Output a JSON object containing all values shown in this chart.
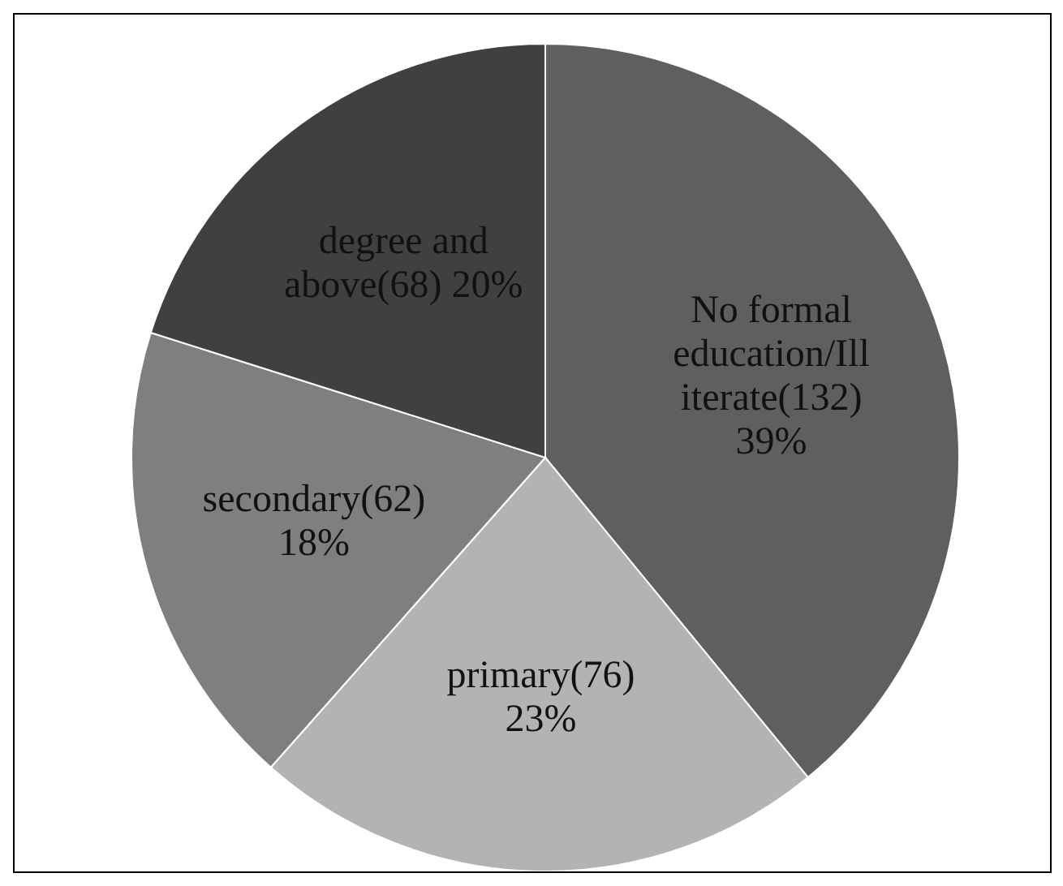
{
  "chart_data": {
    "type": "pie",
    "categories": [
      "No formal education/Illiterate",
      "primary",
      "secondary",
      "degree and above"
    ],
    "values": [
      132,
      76,
      62,
      68
    ],
    "value_labels": [
      "(132) 39%",
      "(76) 23%",
      "(62) 18%",
      "(68) 20%"
    ],
    "colors": [
      "#5f5f5f",
      "#b3b3b3",
      "#7f7f7f",
      "#404040"
    ]
  }
}
